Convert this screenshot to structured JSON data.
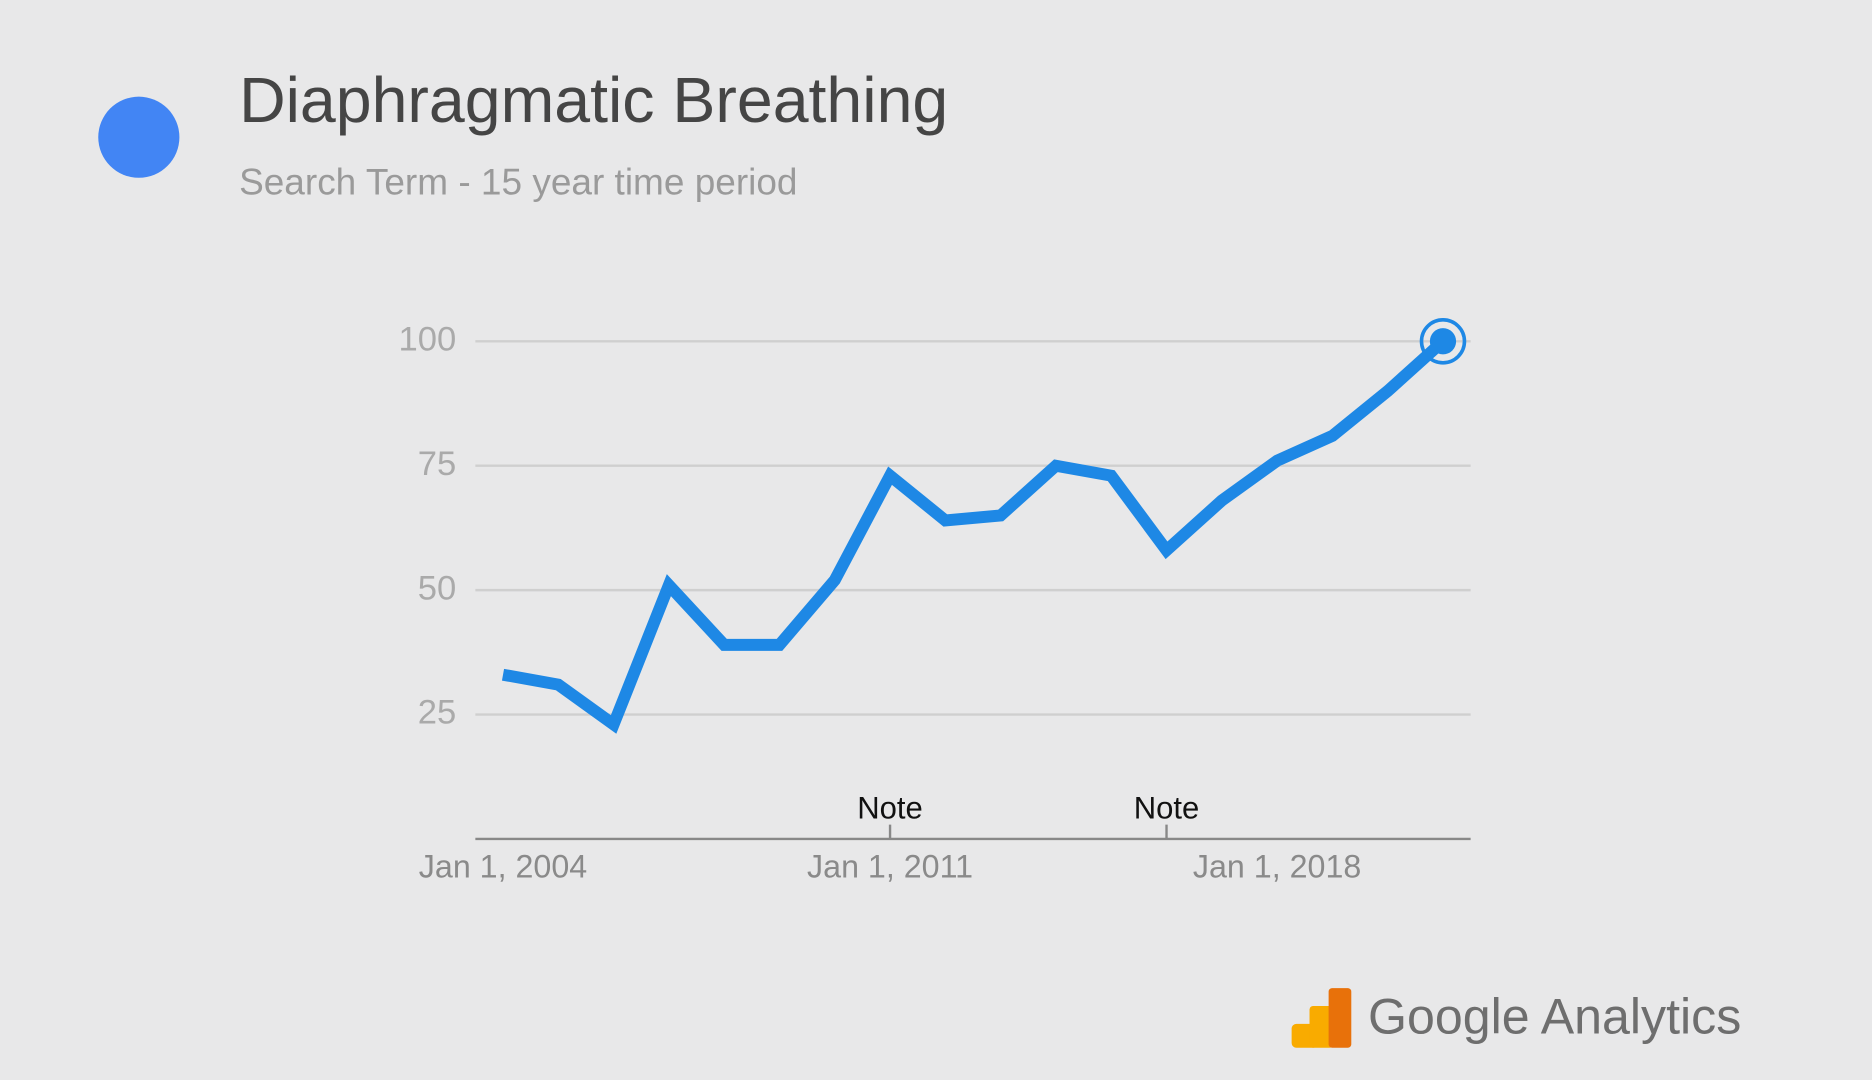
{
  "chart_data": {
    "type": "line",
    "title": "Diaphragmatic Breathing",
    "subtitle": "Search Term - 15 year time period",
    "legend_color": "#4285f4",
    "x": [
      2004,
      2005,
      2006,
      2007,
      2008,
      2009,
      2010,
      2011,
      2012,
      2013,
      2014,
      2015,
      2016,
      2017,
      2018,
      2019,
      2020,
      2021
    ],
    "series": [
      {
        "color": "#1e88e5",
        "values": [
          33,
          31,
          23,
          51,
          39,
          39,
          52,
          73,
          64,
          65,
          75,
          73,
          58,
          68,
          76,
          81,
          90,
          100
        ]
      }
    ],
    "xlim": [
      2003.5,
      2021.5
    ],
    "xticks": [
      {
        "value": 2004,
        "label": "Jan 1, 2004"
      },
      {
        "value": 2011,
        "label": "Jan 1, 2011"
      },
      {
        "value": 2018,
        "label": "Jan 1, 2018"
      }
    ],
    "ylim": [
      0,
      100
    ],
    "yticks": [
      25,
      50,
      75,
      100
    ],
    "grid": true,
    "annotations": [
      {
        "x": 2011,
        "text": "Note"
      },
      {
        "x": 2016,
        "text": "Note"
      }
    ],
    "branding": "Google Analytics"
  }
}
